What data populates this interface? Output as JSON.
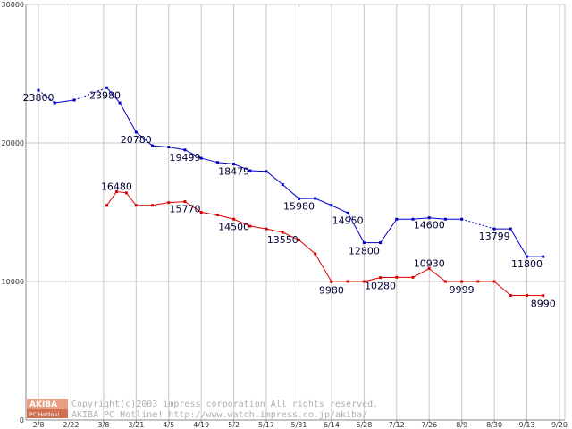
{
  "chart_data": {
    "type": "line",
    "title": "",
    "xlabel": "",
    "ylabel": "",
    "ylim": [
      0,
      30000
    ],
    "y_ticks": [
      0,
      10000,
      20000,
      30000
    ],
    "x_tick_labels": [
      "2/8",
      "2/22",
      "3/8",
      "3/21",
      "4/5",
      "4/19",
      "5/2",
      "5/17",
      "5/31",
      "6/14",
      "6/28",
      "7/12",
      "7/26",
      "8/9",
      "8/30",
      "9/13",
      "9/20"
    ],
    "grid": true,
    "legend": "none",
    "series": [
      {
        "color": "#0000cc",
        "points": [
          {
            "x": 0,
            "y": 23800,
            "label": "23800"
          },
          {
            "x": 0.5,
            "y": 22900
          },
          {
            "x": 1.1,
            "y": 23100
          },
          {
            "x": 2.1,
            "y": 23980,
            "label": "23980"
          },
          {
            "x": 2.5,
            "y": 22900
          },
          {
            "x": 3.0,
            "y": 20780,
            "label": "20780"
          },
          {
            "x": 3.5,
            "y": 19800
          },
          {
            "x": 4.0,
            "y": 19700
          },
          {
            "x": 4.5,
            "y": 19499,
            "label": "19499"
          },
          {
            "x": 5.0,
            "y": 18900
          },
          {
            "x": 5.5,
            "y": 18600
          },
          {
            "x": 6.0,
            "y": 18479,
            "label": "18479"
          },
          {
            "x": 6.5,
            "y": 18000
          },
          {
            "x": 7.0,
            "y": 17950
          },
          {
            "x": 7.5,
            "y": 17000
          },
          {
            "x": 8.0,
            "y": 15980,
            "label": "15980"
          },
          {
            "x": 8.5,
            "y": 16000
          },
          {
            "x": 9.0,
            "y": 15500
          },
          {
            "x": 9.5,
            "y": 14950,
            "label": "14950"
          },
          {
            "x": 10.0,
            "y": 12800,
            "label": "12800"
          },
          {
            "x": 10.5,
            "y": 12800
          },
          {
            "x": 11.0,
            "y": 14500
          },
          {
            "x": 11.5,
            "y": 14500
          },
          {
            "x": 12.0,
            "y": 14600,
            "label": "14600"
          },
          {
            "x": 12.5,
            "y": 14500
          },
          {
            "x": 13.0,
            "y": 14500
          },
          {
            "x": 14.0,
            "y": 13799,
            "label": "13799"
          },
          {
            "x": 14.5,
            "y": 13800
          },
          {
            "x": 15.0,
            "y": 11800,
            "label": "11800"
          },
          {
            "x": 15.5,
            "y": 11800
          }
        ],
        "dashed_segments": [
          [
            0,
            1
          ],
          [
            2,
            3
          ],
          [
            25,
            26
          ]
        ]
      },
      {
        "color": "#dd0000",
        "points": [
          {
            "x": 2.1,
            "y": 15500
          },
          {
            "x": 2.4,
            "y": 16480,
            "label": "16480"
          },
          {
            "x": 2.7,
            "y": 16400
          },
          {
            "x": 3.0,
            "y": 15500
          },
          {
            "x": 3.5,
            "y": 15500
          },
          {
            "x": 4.0,
            "y": 15700
          },
          {
            "x": 4.5,
            "y": 15770,
            "label": "15770"
          },
          {
            "x": 5.0,
            "y": 15000
          },
          {
            "x": 5.5,
            "y": 14800
          },
          {
            "x": 6.0,
            "y": 14500,
            "label": "14500"
          },
          {
            "x": 6.5,
            "y": 14000
          },
          {
            "x": 7.0,
            "y": 13800
          },
          {
            "x": 7.5,
            "y": 13550,
            "label": "13550"
          },
          {
            "x": 8.0,
            "y": 13000
          },
          {
            "x": 8.5,
            "y": 12000
          },
          {
            "x": 9.0,
            "y": 9980,
            "label": "9980"
          },
          {
            "x": 9.5,
            "y": 10000
          },
          {
            "x": 10.0,
            "y": 10000
          },
          {
            "x": 10.5,
            "y": 10280,
            "label": "10280"
          },
          {
            "x": 11.0,
            "y": 10300
          },
          {
            "x": 11.5,
            "y": 10300
          },
          {
            "x": 12.0,
            "y": 10930,
            "label": "10930"
          },
          {
            "x": 12.5,
            "y": 10000
          },
          {
            "x": 13.0,
            "y": 9999,
            "label": "9999"
          },
          {
            "x": 13.5,
            "y": 10000
          },
          {
            "x": 14.0,
            "y": 10000
          },
          {
            "x": 14.5,
            "y": 9000
          },
          {
            "x": 15.0,
            "y": 9000
          },
          {
            "x": 15.5,
            "y": 8990,
            "label": "8990"
          }
        ],
        "dashed_segments": []
      }
    ]
  },
  "watermark": {
    "logo_top": "AKIBA",
    "logo_bottom": "PC Hotline!",
    "line1": "Copyright(c)2003 impress corporation All rights reserved.",
    "line2": "AKIBA PC Hotline!  http://www.watch.impress.co.jp/akiba/"
  }
}
